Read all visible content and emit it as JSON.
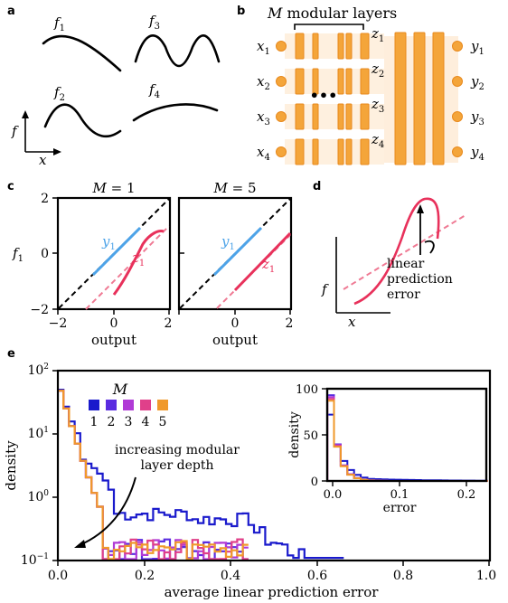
{
  "panels": {
    "a": {
      "label": "a",
      "curves": [
        {
          "name": "f1",
          "sym": "f",
          "sub": "1",
          "kind": "sine",
          "cycles": 0.5
        },
        {
          "name": "f3",
          "sym": "f",
          "sub": "3",
          "kind": "sine",
          "cycles": 1.5
        },
        {
          "name": "f2",
          "sym": "f",
          "sub": "2",
          "kind": "sine",
          "cycles": 1.0
        },
        {
          "name": "f4",
          "sym": "f",
          "sub": "4",
          "kind": "arch",
          "cycles": 0.5
        }
      ],
      "y_axis_label": "f",
      "x_axis_label": "x"
    },
    "b": {
      "label": "b",
      "title_sym": "M",
      "title_text": " modular layers",
      "inputs": [
        {
          "sym": "x",
          "sub": "1"
        },
        {
          "sym": "x",
          "sub": "2"
        },
        {
          "sym": "x",
          "sub": "3"
        },
        {
          "sym": "x",
          "sub": "4"
        }
      ],
      "latents": [
        {
          "sym": "z",
          "sub": "1"
        },
        {
          "sym": "z",
          "sub": "2"
        },
        {
          "sym": "z",
          "sub": "3"
        },
        {
          "sym": "z",
          "sub": "4"
        }
      ],
      "outputs": [
        {
          "sym": "y",
          "sub": "1"
        },
        {
          "sym": "y",
          "sub": "2"
        },
        {
          "sym": "y",
          "sub": "3"
        },
        {
          "sym": "y",
          "sub": "4"
        }
      ],
      "ellipsis": "•••",
      "node_color": "#f4a53a",
      "layer_color": "#f4a53a"
    },
    "c": {
      "label": "c",
      "subplots": [
        {
          "title_sym": "M",
          "title_eq": " = ",
          "title_val": "1",
          "y_line": {
            "sym": "y",
            "sub": "1"
          },
          "z_line": {
            "sym": "z",
            "sub": "1"
          }
        },
        {
          "title_sym": "M",
          "title_eq": " = ",
          "title_val": "5",
          "y_line": {
            "sym": "y",
            "sub": "1"
          },
          "z_line": {
            "sym": "z",
            "sub": "1"
          }
        }
      ],
      "y_axis_label": {
        "sym": "f",
        "sub": "1"
      },
      "x_axis_label": "output",
      "x_ticks": [
        "−2",
        "0",
        "2"
      ],
      "y_ticks": [
        "2",
        "0",
        "−2"
      ],
      "colors": {
        "y": "#4da3e8",
        "z": "#e8315b",
        "z_fit": "#ef7a94"
      }
    },
    "d": {
      "label": "d",
      "annotation": [
        "linear",
        "prediction",
        "error"
      ],
      "y_axis_label": "f",
      "x_axis_label": "x"
    },
    "e": {
      "label": "e",
      "xlabel": "average linear prediction error",
      "ylabel": "density",
      "x_ticks": [
        "0.0",
        "0.2",
        "0.4",
        "0.6",
        "0.8",
        "1.0"
      ],
      "y_ticks": [
        {
          "base": "10",
          "exp": "2"
        },
        {
          "base": "10",
          "exp": "1"
        },
        {
          "base": "10",
          "exp": "0"
        },
        {
          "base": "10",
          "exp": "−1"
        }
      ],
      "legend_title": "M",
      "legend": [
        {
          "label": "1",
          "color": "#1a1acc"
        },
        {
          "label": "2",
          "color": "#5a2ce0"
        },
        {
          "label": "3",
          "color": "#b03ad6"
        },
        {
          "label": "4",
          "color": "#e0408a"
        },
        {
          "label": "5",
          "color": "#f0992a"
        }
      ],
      "arrow_text": [
        "increasing modular",
        "layer depth"
      ],
      "inset": {
        "xlabel": "error",
        "ylabel": "density",
        "x_ticks": [
          "0.0",
          "0.1",
          "0.2"
        ],
        "y_ticks": [
          "100",
          "50",
          "0"
        ]
      }
    }
  }
}
